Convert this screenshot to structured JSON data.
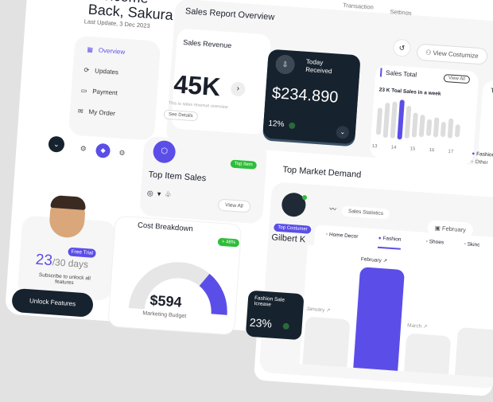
{
  "header": {
    "welcome": "Welcome Back, Sakura",
    "last_update": "Last Update, 3 Dec 2023",
    "top_nav": [
      "Transaction",
      "Settings"
    ]
  },
  "sidebar": {
    "items": [
      {
        "label": "Overview",
        "icon": "grid-icon",
        "active": true
      },
      {
        "label": "Updates",
        "icon": "refresh-icon"
      },
      {
        "label": "Payment",
        "icon": "wallet-icon"
      },
      {
        "label": "My Order",
        "icon": "inbox-icon"
      }
    ]
  },
  "trial": {
    "badge": "Free Trial",
    "days_used": "23",
    "days_total": "/30 days",
    "subtitle": "Subscribe to unlock all features",
    "button": "Unlock Features"
  },
  "report": {
    "title": "Sales Report Overview",
    "customize": "View Costumize"
  },
  "revenue": {
    "title": "Sales Revenue",
    "value": "45K",
    "caption": "This is sales revenue overview",
    "details": "See Details"
  },
  "today": {
    "label": "Today Received",
    "value": "$234.890",
    "change": "12%"
  },
  "sales_total": {
    "title": "Sales Total",
    "view_all": "View All",
    "subtitle": "23 K Toal Sales in a week",
    "x_labels": [
      "13",
      "14",
      "15",
      "16",
      "17"
    ],
    "bars": [
      55,
      70,
      75,
      80,
      65,
      50,
      45,
      35,
      40,
      30,
      40,
      25
    ],
    "highlight_index": 3,
    "accent": "#5b4ee8"
  },
  "side_card": {
    "title": "To",
    "legend": [
      "Fashion",
      "Other"
    ]
  },
  "top_item": {
    "title": "Top Item Sales",
    "badge": "Top Item",
    "view_all": "View All"
  },
  "cost": {
    "title": "Cost Breakdown",
    "badge": "+ 48%",
    "value": "$594",
    "label": "Marketing Budget",
    "progress": 0.7
  },
  "market": {
    "title": "Top Market Demand",
    "customer_badge": "Top Costumer",
    "customer": "Gilbert K",
    "stats": "Sales Statistics",
    "month": "February",
    "tabs": [
      "Home Decor",
      "Fashion",
      "Shoes",
      "Skinc"
    ],
    "active_tab": 1,
    "fashion_label": "Fashion Sale Icrease",
    "fashion_value": "23%",
    "months": [
      {
        "label": "January",
        "value": 40
      },
      {
        "label": "February",
        "value": 85,
        "highlight": true
      },
      {
        "label": "March",
        "value": 32
      },
      {
        "label": "",
        "value": 40
      }
    ]
  },
  "colors": {
    "accent": "#5b4ee8",
    "dark": "#16222e",
    "green": "#2fbd3a"
  }
}
